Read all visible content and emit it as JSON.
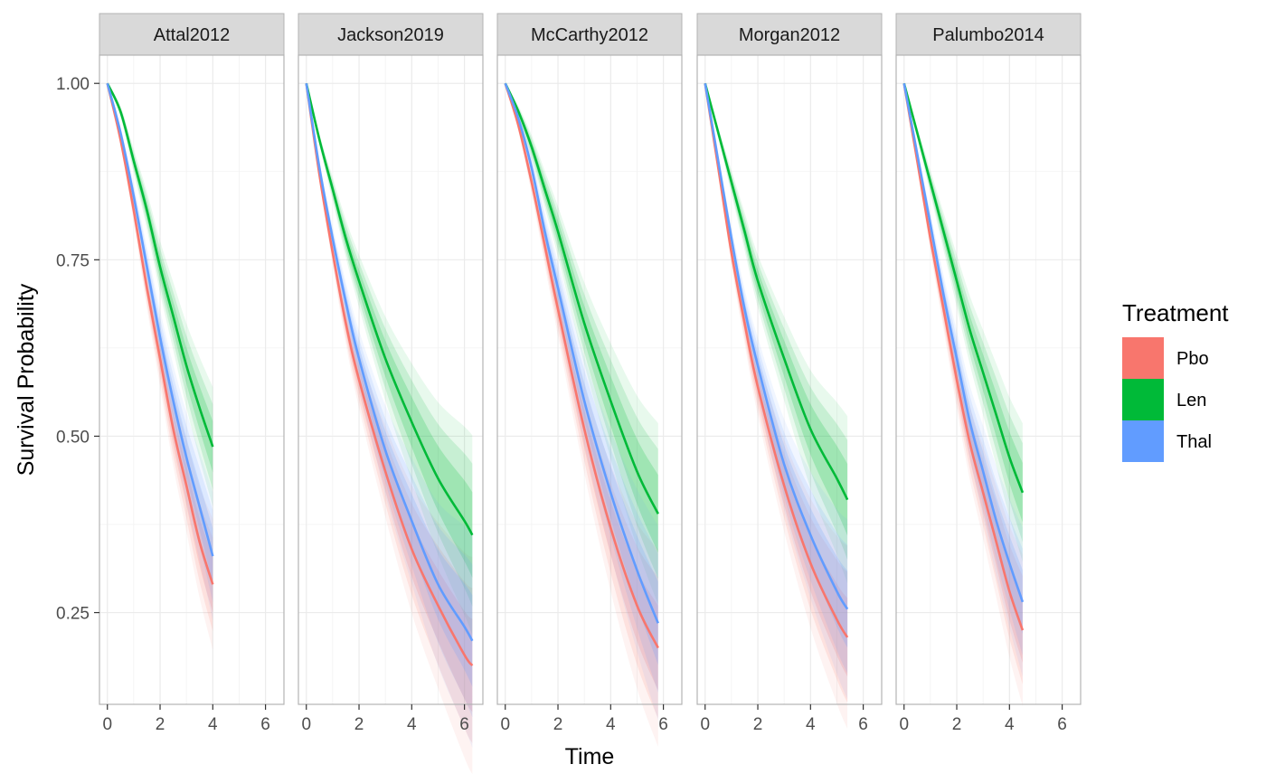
{
  "chart_data": {
    "type": "line",
    "xlabel": "Time",
    "ylabel": "Survival Probability",
    "xlim": [
      -0.3,
      6.7
    ],
    "ylim": [
      0.12,
      1.04
    ],
    "x_ticks": [
      0,
      2,
      4,
      6
    ],
    "y_ticks": [
      0.25,
      0.5,
      0.75,
      1.0
    ],
    "y_tick_labels": [
      "0.25",
      "0.50",
      "0.75",
      "1.00"
    ],
    "x_tick_labels": [
      "0",
      "2",
      "4",
      "6"
    ],
    "grid": true,
    "legend": {
      "title": "Treatment",
      "position": "right",
      "entries": [
        {
          "name": "Pbo",
          "color": "#F8766D"
        },
        {
          "name": "Len",
          "color": "#00BA38"
        },
        {
          "name": "Thal",
          "color": "#619CFF"
        }
      ]
    },
    "panels": [
      {
        "title": "Attal2012",
        "series": [
          {
            "name": "Pbo",
            "x": [
              0,
              0.5,
              1,
              1.5,
              2,
              2.5,
              3,
              3.5,
              4
            ],
            "y": [
              1.0,
              0.92,
              0.82,
              0.71,
              0.61,
              0.51,
              0.43,
              0.35,
              0.29
            ]
          },
          {
            "name": "Len",
            "x": [
              0,
              0.5,
              1,
              1.5,
              2,
              2.5,
              3,
              3.5,
              4
            ],
            "y": [
              1.0,
              0.96,
              0.89,
              0.82,
              0.74,
              0.67,
              0.6,
              0.54,
              0.485
            ]
          },
          {
            "name": "Thal",
            "x": [
              0,
              0.5,
              1,
              1.5,
              2,
              2.5,
              3,
              3.5,
              4
            ],
            "y": [
              1.0,
              0.93,
              0.84,
              0.74,
              0.64,
              0.55,
              0.47,
              0.4,
              0.33
            ]
          }
        ]
      },
      {
        "title": "Jackson2019",
        "series": [
          {
            "name": "Pbo",
            "x": [
              0,
              0.5,
              1,
              1.5,
              2,
              3,
              4,
              5,
              6,
              6.3
            ],
            "y": [
              1.0,
              0.87,
              0.76,
              0.66,
              0.58,
              0.45,
              0.34,
              0.26,
              0.19,
              0.175
            ]
          },
          {
            "name": "Len",
            "x": [
              0,
              0.5,
              1,
              1.5,
              2,
              3,
              4,
              5,
              6,
              6.3
            ],
            "y": [
              1.0,
              0.92,
              0.85,
              0.78,
              0.72,
              0.61,
              0.52,
              0.44,
              0.38,
              0.36
            ]
          },
          {
            "name": "Thal",
            "x": [
              0,
              0.5,
              1,
              1.5,
              2,
              3,
              4,
              5,
              6,
              6.3
            ],
            "y": [
              1.0,
              0.88,
              0.78,
              0.69,
              0.61,
              0.48,
              0.38,
              0.29,
              0.23,
              0.21
            ]
          }
        ]
      },
      {
        "title": "McCarthy2012",
        "series": [
          {
            "name": "Pbo",
            "x": [
              0,
              0.5,
              1,
              1.5,
              2,
              3,
              4,
              5,
              5.8
            ],
            "y": [
              1.0,
              0.94,
              0.86,
              0.77,
              0.68,
              0.51,
              0.37,
              0.26,
              0.2
            ]
          },
          {
            "name": "Len",
            "x": [
              0,
              0.5,
              1,
              1.5,
              2,
              3,
              4,
              5,
              5.8
            ],
            "y": [
              1.0,
              0.96,
              0.91,
              0.85,
              0.79,
              0.66,
              0.55,
              0.45,
              0.39
            ]
          },
          {
            "name": "Thal",
            "x": [
              0,
              0.5,
              1,
              1.5,
              2,
              3,
              4,
              5,
              5.8
            ],
            "y": [
              1.0,
              0.95,
              0.88,
              0.79,
              0.71,
              0.55,
              0.42,
              0.31,
              0.235
            ]
          }
        ]
      },
      {
        "title": "Morgan2012",
        "series": [
          {
            "name": "Pbo",
            "x": [
              0,
              0.5,
              1,
              1.5,
              2,
              3,
              4,
              5,
              5.4
            ],
            "y": [
              1.0,
              0.88,
              0.76,
              0.66,
              0.57,
              0.43,
              0.32,
              0.24,
              0.215
            ]
          },
          {
            "name": "Len",
            "x": [
              0,
              0.5,
              1,
              1.5,
              2,
              3,
              4,
              5,
              5.4
            ],
            "y": [
              1.0,
              0.93,
              0.86,
              0.79,
              0.72,
              0.61,
              0.51,
              0.44,
              0.41
            ]
          },
          {
            "name": "Thal",
            "x": [
              0,
              0.5,
              1,
              1.5,
              2,
              3,
              4,
              5,
              5.4
            ],
            "y": [
              1.0,
              0.89,
              0.78,
              0.68,
              0.6,
              0.46,
              0.36,
              0.28,
              0.255
            ]
          }
        ]
      },
      {
        "title": "Palumbo2014",
        "series": [
          {
            "name": "Pbo",
            "x": [
              0,
              0.5,
              1,
              1.5,
              2,
              2.5,
              3,
              3.5,
              4,
              4.5
            ],
            "y": [
              1.0,
              0.89,
              0.78,
              0.68,
              0.58,
              0.49,
              0.42,
              0.35,
              0.28,
              0.225
            ]
          },
          {
            "name": "Len",
            "x": [
              0,
              0.5,
              1,
              1.5,
              2,
              2.5,
              3,
              3.5,
              4,
              4.5
            ],
            "y": [
              1.0,
              0.93,
              0.86,
              0.79,
              0.72,
              0.65,
              0.59,
              0.53,
              0.47,
              0.42
            ]
          },
          {
            "name": "Thal",
            "x": [
              0,
              0.5,
              1,
              1.5,
              2,
              2.5,
              3,
              3.5,
              4,
              4.5
            ],
            "y": [
              1.0,
              0.9,
              0.8,
              0.7,
              0.61,
              0.52,
              0.45,
              0.38,
              0.32,
              0.265
            ]
          }
        ]
      }
    ]
  }
}
